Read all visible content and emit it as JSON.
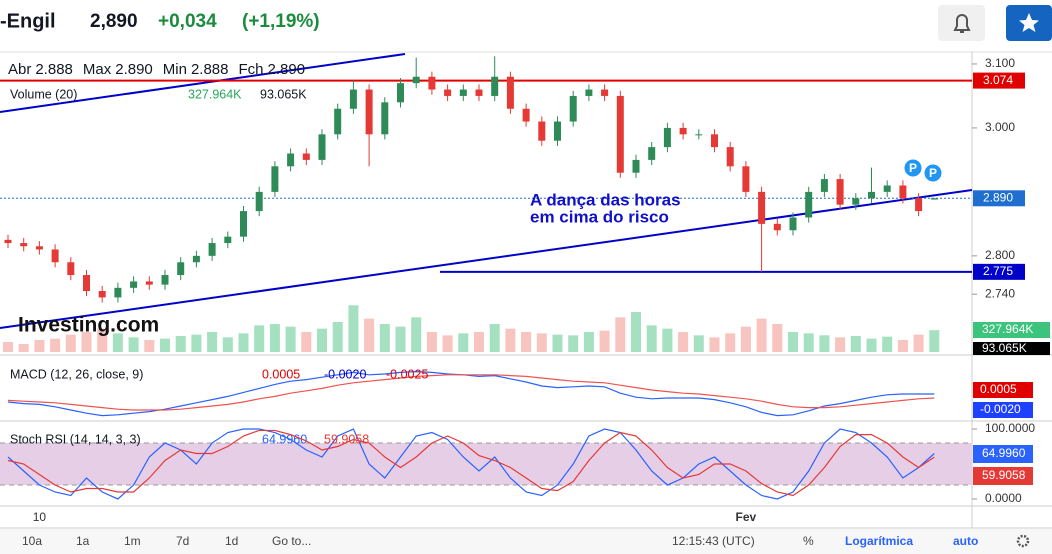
{
  "header": {
    "symbol": "-Engil",
    "price": "2,890",
    "change": "+0,034",
    "change_pct": "(+1,19%)"
  },
  "chart_data": {
    "type": "candlestick",
    "legend": [
      {
        "label": "Abr",
        "value": "2.888"
      },
      {
        "label": "Max",
        "value": "2.890"
      },
      {
        "label": "Min",
        "value": "2.888"
      },
      {
        "label": "Fch",
        "value": "2.890"
      }
    ],
    "volume_legend": {
      "name": "Volume (20)",
      "value": "327.964K",
      "ma": "93.065K"
    },
    "annotation": [
      "A dança das horas",
      "em cima do risco"
    ],
    "watermark": "Investing.com",
    "markers": [
      "P",
      "P"
    ],
    "categories": [
      null,
      null,
      "10",
      null,
      null,
      null,
      null,
      null,
      null,
      null,
      null,
      null,
      null,
      null,
      null,
      null,
      null,
      null,
      null,
      null,
      null,
      null,
      null,
      null,
      null,
      null,
      null,
      null,
      null,
      null,
      null,
      null,
      null,
      null,
      null,
      null,
      null,
      null,
      null,
      null,
      null,
      null,
      null,
      null,
      null,
      null,
      null,
      "Fev",
      null,
      null,
      null,
      null,
      null,
      null,
      null,
      null,
      null,
      null,
      null,
      null
    ],
    "open": [
      2.825,
      2.82,
      2.815,
      2.81,
      2.79,
      2.77,
      2.745,
      2.735,
      2.75,
      2.76,
      2.755,
      2.77,
      2.79,
      2.8,
      2.82,
      2.83,
      2.87,
      2.9,
      2.94,
      2.96,
      2.95,
      2.99,
      3.03,
      3.06,
      2.99,
      3.04,
      3.07,
      3.08,
      3.06,
      3.05,
      3.06,
      3.05,
      3.08,
      3.03,
      3.01,
      2.98,
      3.01,
      3.05,
      3.06,
      3.05,
      2.93,
      2.95,
      2.97,
      3.0,
      2.99,
      2.99,
      2.97,
      2.94,
      2.9,
      2.85,
      2.84,
      2.86,
      2.9,
      2.92,
      2.88,
      2.89,
      2.9,
      2.91,
      2.89,
      2.888
    ],
    "high": [
      2.833,
      2.828,
      2.823,
      2.818,
      2.798,
      2.778,
      2.753,
      2.758,
      2.768,
      2.768,
      2.778,
      2.798,
      2.808,
      2.828,
      2.838,
      2.878,
      2.908,
      2.948,
      2.968,
      2.968,
      2.998,
      3.038,
      3.074,
      3.068,
      3.048,
      3.078,
      3.11,
      3.088,
      3.068,
      3.068,
      3.068,
      3.112,
      3.088,
      3.038,
      3.018,
      3.018,
      3.058,
      3.068,
      3.068,
      3.058,
      2.958,
      2.978,
      3.008,
      3.008,
      2.998,
      2.998,
      2.978,
      2.948,
      2.908,
      2.858,
      2.868,
      2.908,
      2.928,
      2.928,
      2.898,
      2.938,
      2.918,
      2.918,
      2.898,
      2.89
    ],
    "low": [
      2.812,
      2.807,
      2.802,
      2.782,
      2.762,
      2.737,
      2.727,
      2.727,
      2.742,
      2.747,
      2.747,
      2.762,
      2.782,
      2.792,
      2.812,
      2.822,
      2.862,
      2.892,
      2.932,
      2.942,
      2.942,
      2.982,
      3.022,
      2.94,
      2.982,
      3.032,
      3.062,
      3.052,
      3.042,
      3.042,
      3.042,
      3.042,
      3.022,
      3.002,
      2.972,
      2.972,
      3.002,
      3.042,
      3.042,
      2.922,
      2.922,
      2.942,
      2.962,
      2.982,
      2.982,
      2.962,
      2.932,
      2.892,
      2.775,
      2.832,
      2.832,
      2.852,
      2.892,
      2.872,
      2.872,
      2.882,
      2.892,
      2.882,
      2.862,
      2.888
    ],
    "close": [
      2.82,
      2.815,
      2.81,
      2.79,
      2.77,
      2.745,
      2.735,
      2.75,
      2.76,
      2.755,
      2.77,
      2.79,
      2.8,
      2.82,
      2.83,
      2.87,
      2.9,
      2.94,
      2.96,
      2.95,
      2.99,
      3.03,
      3.06,
      2.99,
      3.04,
      3.07,
      3.08,
      3.06,
      3.05,
      3.06,
      3.05,
      3.08,
      3.03,
      3.01,
      2.98,
      3.01,
      3.05,
      3.06,
      3.05,
      2.93,
      2.95,
      2.97,
      3.0,
      2.99,
      2.99,
      2.97,
      2.94,
      2.9,
      2.85,
      2.84,
      2.86,
      2.9,
      2.92,
      2.88,
      2.89,
      2.9,
      2.91,
      2.89,
      2.87,
      2.89
    ],
    "up_color": "#2e8b57",
    "down_color": "#e53935",
    "ylim": [
      2.645,
      3.114
    ],
    "yticks": [
      {
        "value": 3.1,
        "label": "3.100"
      },
      {
        "value": 3.0,
        "label": "3.000"
      },
      {
        "value": 2.8,
        "label": "2.800"
      },
      {
        "value": 2.74,
        "label": "2.740"
      }
    ],
    "levels": [
      {
        "value": 3.074,
        "color": "#e00000"
      },
      {
        "value": 2.775,
        "color": "#0000c8"
      },
      {
        "value": 2.89,
        "color": "#1e6fd0"
      }
    ],
    "volume": [
      150,
      120,
      180,
      200,
      260,
      300,
      350,
      280,
      220,
      180,
      200,
      240,
      260,
      300,
      220,
      280,
      400,
      420,
      380,
      300,
      350,
      450,
      700,
      500,
      420,
      380,
      520,
      300,
      250,
      280,
      300,
      420,
      350,
      300,
      280,
      260,
      250,
      300,
      320,
      520,
      600,
      400,
      350,
      300,
      250,
      220,
      280,
      380,
      500,
      420,
      300,
      280,
      250,
      220,
      240,
      200,
      230,
      180,
      260,
      327.964
    ],
    "volume_lim": [
      0,
      1200
    ],
    "macd": {
      "name": "MACD (12, 26, close, 9)",
      "labels": [
        "0.0005",
        "-0.0020",
        "-0.0025"
      ],
      "axis_labels": [
        "0.0005",
        "-0.0020"
      ],
      "ylim": [
        -0.00325,
        0.0045
      ],
      "series": [
        {
          "name": "MACD",
          "color": "#2962ff",
          "values": [
            -0.001,
            -0.0012,
            -0.0013,
            -0.0016,
            -0.002,
            -0.0024,
            -0.0027,
            -0.0026,
            -0.0024,
            -0.0022,
            -0.0019,
            -0.0015,
            -0.0011,
            -0.0007,
            -0.0003,
            0.0002,
            0.0007,
            0.0012,
            0.0016,
            0.0018,
            0.0021,
            0.0024,
            0.0027,
            0.0024,
            0.0025,
            0.0027,
            0.0028,
            0.0027,
            0.0025,
            0.0024,
            0.0022,
            0.0023,
            0.0019,
            0.0015,
            0.001,
            0.0008,
            0.0009,
            0.001,
            0.0009,
            0.0001,
            -0.0004,
            -0.0006,
            -0.0005,
            -0.0005,
            -0.0005,
            -0.0007,
            -0.0011,
            -0.0016,
            -0.0023,
            -0.0027,
            -0.0026,
            -0.0021,
            -0.0015,
            -0.0012,
            -0.0008,
            -0.0004,
            -0.0001,
            0.0,
            0.0,
            0.0
          ]
        },
        {
          "name": "Signal",
          "color": "#ef5350",
          "values": [
            -0.0008,
            -0.0009,
            -0.001,
            -0.0011,
            -0.0013,
            -0.0015,
            -0.0017,
            -0.0019,
            -0.002,
            -0.002,
            -0.002,
            -0.0019,
            -0.0017,
            -0.0015,
            -0.0013,
            -0.001,
            -0.0006,
            -0.0003,
            0.0001,
            0.0004,
            0.0007,
            0.0011,
            0.0014,
            0.0016,
            0.0018,
            0.002,
            0.0022,
            0.0023,
            0.0024,
            0.0024,
            0.0024,
            0.0024,
            0.0023,
            0.0022,
            0.002,
            0.0018,
            0.0016,
            0.0015,
            0.0014,
            0.0011,
            0.0008,
            0.0005,
            0.0003,
            0.0001,
            0.0,
            -0.0002,
            -0.0004,
            -0.0006,
            -0.0009,
            -0.0013,
            -0.0016,
            -0.0017,
            -0.0017,
            -0.0016,
            -0.0014,
            -0.0012,
            -0.001,
            -0.0008,
            -0.0006,
            -0.0005
          ]
        }
      ]
    },
    "stoch": {
      "name": "Stoch RSI (14, 14, 3, 3)",
      "ylim": [
        -8.6,
        108.6
      ],
      "band": [
        20,
        80
      ],
      "yticks": [
        {
          "value": 100,
          "label": "100.0000"
        },
        {
          "value": 0,
          "label": "0.0000"
        }
      ],
      "series": [
        {
          "name": "%K",
          "color": "#2962ff",
          "value_label": "64.9960",
          "values": [
            60,
            40,
            20,
            10,
            5,
            30,
            10,
            0,
            20,
            60,
            80,
            70,
            50,
            80,
            95,
            100,
            100,
            95,
            85,
            70,
            60,
            90,
            100,
            50,
            30,
            60,
            90,
            95,
            85,
            60,
            40,
            60,
            30,
            10,
            5,
            20,
            50,
            90,
            100,
            95,
            70,
            40,
            20,
            30,
            50,
            60,
            40,
            20,
            5,
            0,
            10,
            40,
            80,
            100,
            95,
            80,
            60,
            30,
            45,
            64.996
          ]
        },
        {
          "name": "%D",
          "color": "#e53935",
          "value_label": "59.9058",
          "values": [
            55,
            50,
            35,
            20,
            10,
            15,
            15,
            10,
            10,
            30,
            55,
            70,
            65,
            65,
            75,
            90,
            98,
            98,
            92,
            83,
            70,
            75,
            85,
            80,
            60,
            45,
            60,
            80,
            90,
            80,
            62,
            55,
            45,
            30,
            15,
            12,
            25,
            55,
            80,
            95,
            90,
            70,
            45,
            30,
            35,
            50,
            50,
            40,
            22,
            10,
            5,
            20,
            45,
            75,
            92,
            92,
            80,
            60,
            45,
            59.9058
          ]
        }
      ]
    }
  },
  "toolbar": {
    "ranges": [
      "10a",
      "1a",
      "1m",
      "7d",
      "1d"
    ],
    "goto": "Go to...",
    "time": "12:15:43 (UTC)",
    "percent": "%",
    "log": "Logarítmica",
    "auto": "auto"
  }
}
